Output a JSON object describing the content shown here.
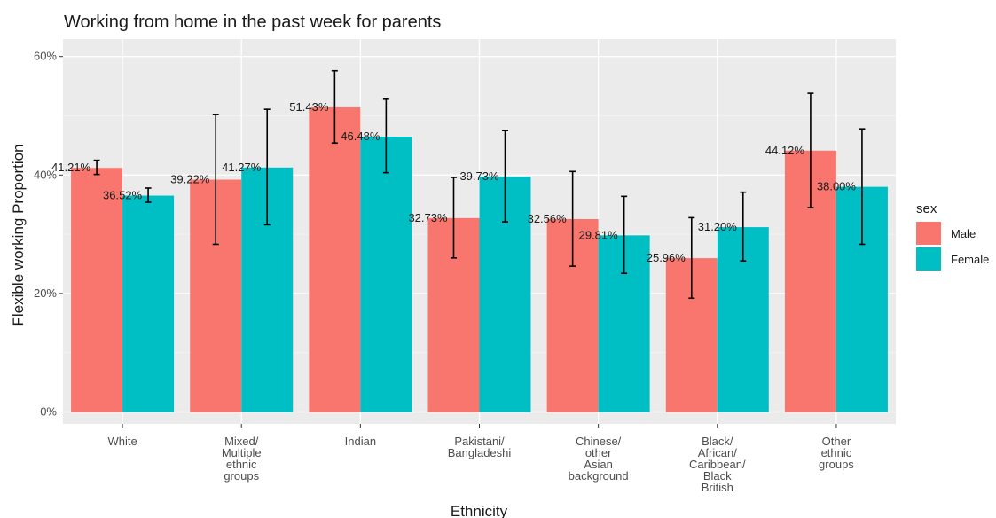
{
  "chart_data": {
    "type": "bar",
    "title": "Working from home in the past week for parents",
    "xlabel": "Ethnicity",
    "ylabel": "Flexible working Proportion",
    "ylim": [
      0,
      62
    ],
    "yticks": [
      "0%",
      "20%",
      "40%",
      "60%"
    ],
    "ytick_values": [
      0,
      20,
      40,
      60
    ],
    "grid": true,
    "legend": {
      "title": "sex",
      "placement": "right"
    },
    "categories": [
      [
        "White"
      ],
      [
        "Mixed/",
        "Multiple",
        "ethnic",
        "groups"
      ],
      [
        "Indian"
      ],
      [
        "Pakistani/",
        "Bangladeshi"
      ],
      [
        "Chinese/",
        "other",
        "Asian",
        "background"
      ],
      [
        "Black/",
        "African/",
        "Caribbean/",
        "Black",
        "British"
      ],
      [
        "Other",
        "ethnic",
        "groups"
      ]
    ],
    "series": [
      {
        "name": "Male",
        "color": "#F8766D",
        "values": [
          41.21,
          39.22,
          51.43,
          32.73,
          32.56,
          25.96,
          44.12
        ],
        "labels": [
          "41.21%",
          "39.22%",
          "51.43%",
          "32.73%",
          "32.56%",
          "25.96%",
          "44.12%"
        ],
        "error_low": [
          40.1,
          28.3,
          45.4,
          26.0,
          24.6,
          19.2,
          34.5
        ],
        "error_high": [
          42.5,
          50.2,
          57.6,
          39.6,
          40.6,
          32.8,
          53.8
        ]
      },
      {
        "name": "Female",
        "color": "#00BFC4",
        "values": [
          36.52,
          41.27,
          46.48,
          39.73,
          29.81,
          31.2,
          38.0
        ],
        "labels": [
          "36.52%",
          "41.27%",
          "46.48%",
          "39.73%",
          "29.81%",
          "31.20%",
          "38.00%"
        ],
        "error_low": [
          35.4,
          31.6,
          40.4,
          32.1,
          23.4,
          25.5,
          28.3
        ],
        "error_high": [
          37.8,
          51.1,
          52.8,
          47.5,
          36.4,
          37.1,
          47.8
        ]
      }
    ]
  }
}
